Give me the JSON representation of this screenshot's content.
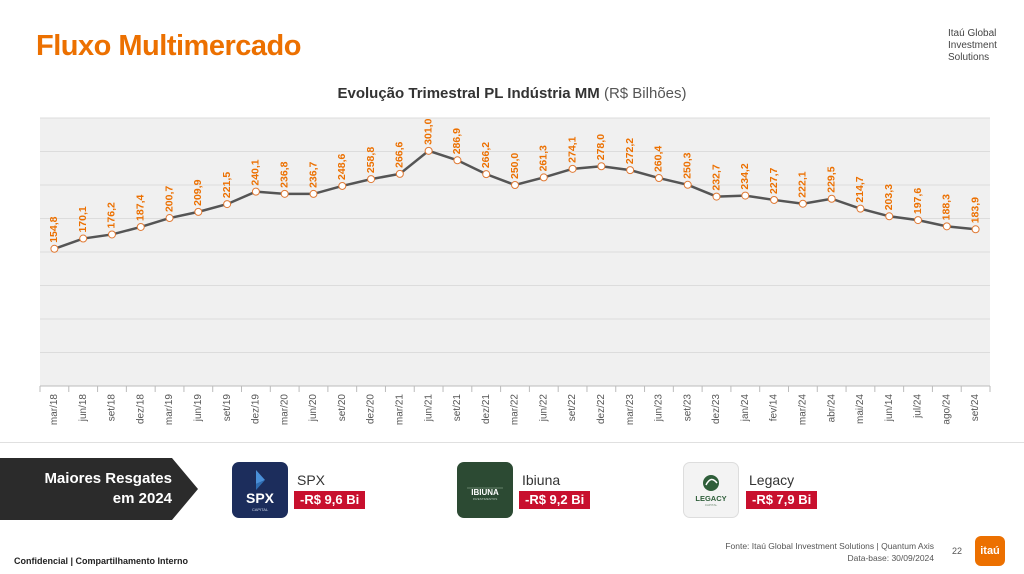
{
  "header": {
    "title": "Fluxo Multimercado",
    "brand": "Itaú Global Investment Solutions"
  },
  "chart_data": {
    "type": "line",
    "title": "Evolução Trimestral PL Indústria MM",
    "unit": "(R$ Bilhões)",
    "categories": [
      "mar/18",
      "jun/18",
      "set/18",
      "dez/18",
      "mar/19",
      "jun/19",
      "set/19",
      "dez/19",
      "mar/20",
      "jun/20",
      "set/20",
      "dez/20",
      "mar/21",
      "jun/21",
      "set/21",
      "dez/21",
      "mar/22",
      "jun/22",
      "set/22",
      "dez/22",
      "mar/23",
      "jun/23",
      "set/23",
      "dez/23",
      "jan/24",
      "fev/14",
      "mar/24",
      "abr/24",
      "mai/24",
      "jun/14",
      "jul/24",
      "ago/24",
      "set/24"
    ],
    "values": [
      154.8,
      170.1,
      176.2,
      187.4,
      200.7,
      209.9,
      221.5,
      240.1,
      236.8,
      236.7,
      248.6,
      258.8,
      266.6,
      301.0,
      286.9,
      266.2,
      250.0,
      261.3,
      274.1,
      278.0,
      272.2,
      260.4,
      250.3,
      232.7,
      234.2,
      227.7,
      222.1,
      229.5,
      214.7,
      203.3,
      197.6,
      188.3,
      183.9
    ],
    "labels": [
      "154,8",
      "170,1",
      "176,2",
      "187,4",
      "200,7",
      "209,9",
      "221,5",
      "240,1",
      "236,8",
      "236,7",
      "248,6",
      "258,8",
      "266,6",
      "301,0",
      "286,9",
      "266,2",
      "250,0",
      "261,3",
      "274,1",
      "278,0",
      "272,2",
      "260,4",
      "250,3",
      "232,7",
      "234,2",
      "227,7",
      "222,1",
      "229,5",
      "214,7",
      "203,3",
      "197,6",
      "188,3",
      "183,9"
    ],
    "ylim": [
      -50,
      350
    ],
    "grid": true,
    "colors": {
      "line": "#555555",
      "label": "#ec7000",
      "plot_bg": "#f0f0f0",
      "marker_fill": "#ffffff",
      "marker_stroke": "#e07a35"
    }
  },
  "banner": {
    "line1": "Maiores Resgates",
    "line2": "em 2024",
    "color": "#2b2b2b"
  },
  "funds": [
    {
      "name": "SPX",
      "value": "-R$ 9,6 Bi",
      "logo_text": "SPX",
      "logo_sub": "CAPITAL"
    },
    {
      "name": "Ibiuna",
      "value": "-R$ 9,2 Bi",
      "logo_text": "IBIUNA",
      "logo_sub": "INVESTIMENTOS"
    },
    {
      "name": "Legacy",
      "value": "-R$ 7,9 Bi",
      "logo_text": "LEGACY",
      "logo_sub": "CAPITAL"
    }
  ],
  "footer": {
    "confidential": "Confidencial | Compartilhamento Interno",
    "source": "Fonte: Itaú Global Investment Solutions | Quantum Axis",
    "date": "Data-base: 30/09/2024",
    "page": "22",
    "logo": "itaú"
  }
}
